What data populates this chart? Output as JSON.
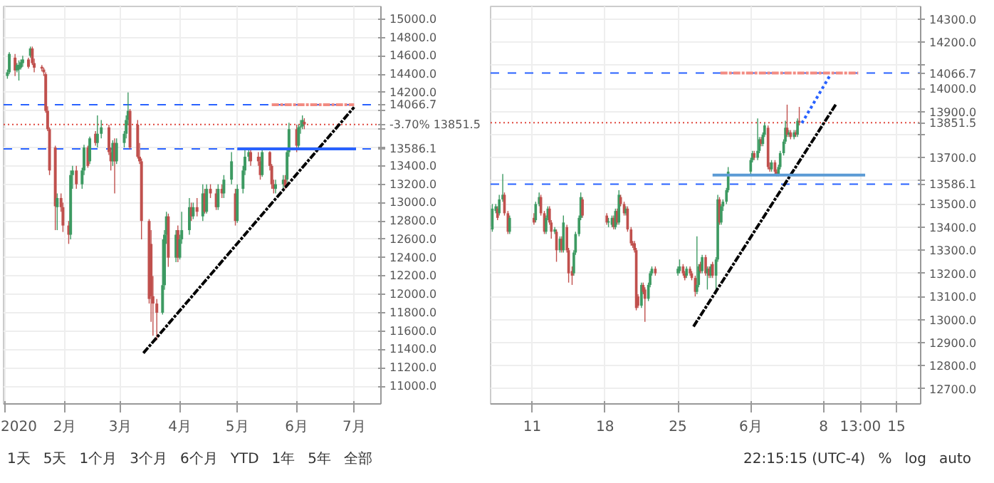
{
  "chart_data": [
    {
      "type": "candlestick",
      "x": [
        "2020-01-02",
        "2020-01-03",
        "2020-01-06",
        "2020-01-07",
        "2020-01-08",
        "2020-01-09",
        "2020-01-10",
        "2020-01-13",
        "2020-01-14",
        "2020-01-15",
        "2020-01-16",
        "2020-01-20",
        "2020-01-21",
        "2020-01-22",
        "2020-01-23",
        "2020-01-24",
        "2020-01-27",
        "2020-01-28",
        "2020-01-30",
        "2020-01-31",
        "2020-02-03",
        "2020-02-04",
        "2020-02-05",
        "2020-02-07",
        "2020-02-10",
        "2020-02-11",
        "2020-02-13",
        "2020-02-14",
        "2020-02-17",
        "2020-02-18",
        "2020-02-20",
        "2020-02-24",
        "2020-02-25",
        "2020-02-26",
        "2020-02-27",
        "2020-02-28",
        "2020-03-03",
        "2020-03-04",
        "2020-03-05",
        "2020-03-06",
        "2020-03-10",
        "2020-03-11",
        "2020-03-12",
        "2020-03-16",
        "2020-03-17",
        "2020-03-18",
        "2020-03-20",
        "2020-03-23",
        "2020-03-24",
        "2020-03-25",
        "2020-03-26",
        "2020-03-30",
        "2020-03-31",
        "2020-04-01",
        "2020-04-02",
        "2020-04-06",
        "2020-04-07",
        "2020-04-08",
        "2020-04-10",
        "2020-04-13",
        "2020-04-14",
        "2020-04-15",
        "2020-04-17",
        "2020-04-20",
        "2020-04-21",
        "2020-04-23",
        "2020-04-24",
        "2020-04-28",
        "2020-04-30",
        "2020-05-01",
        "2020-05-04",
        "2020-05-05",
        "2020-05-07",
        "2020-05-08",
        "2020-05-12",
        "2020-05-13",
        "2020-05-14",
        "2020-05-18",
        "2020-05-19",
        "2020-05-20",
        "2020-05-21",
        "2020-05-25",
        "2020-05-26",
        "2020-05-27",
        "2020-05-28",
        "2020-06-01",
        "2020-06-02",
        "2020-06-03",
        "2020-06-04",
        "2020-06-05"
      ],
      "ohlc": [
        [
          14380,
          14450,
          14350,
          14420
        ],
        [
          14420,
          14640,
          14400,
          14620
        ],
        [
          14580,
          14620,
          14380,
          14440
        ],
        [
          14440,
          14520,
          14420,
          14500
        ],
        [
          14450,
          14550,
          14330,
          14500
        ],
        [
          14470,
          14560,
          14450,
          14530
        ],
        [
          14520,
          14600,
          14480,
          14560
        ],
        [
          14560,
          14580,
          14460,
          14480
        ],
        [
          14600,
          14700,
          14580,
          14680
        ],
        [
          14680,
          14700,
          14500,
          14520
        ],
        [
          14520,
          14570,
          14420,
          14470
        ],
        [
          14480,
          14500,
          14430,
          14460
        ],
        [
          14450,
          14470,
          14380,
          14420
        ],
        [
          14400,
          14420,
          13980,
          14000
        ],
        [
          14000,
          14050,
          13780,
          13800
        ],
        [
          13800,
          13820,
          13300,
          13350
        ],
        [
          13600,
          13620,
          12700,
          12960
        ],
        [
          12950,
          13100,
          12700,
          13050
        ],
        [
          13050,
          13100,
          12900,
          12950
        ],
        [
          12950,
          13000,
          12680,
          12750
        ],
        [
          12750,
          12800,
          12550,
          12650
        ],
        [
          12650,
          13350,
          12600,
          13300
        ],
        [
          13300,
          13400,
          13150,
          13350
        ],
        [
          13350,
          13400,
          13150,
          13200
        ],
        [
          13200,
          13380,
          13150,
          13350
        ],
        [
          13350,
          13630,
          13300,
          13600
        ],
        [
          13600,
          13620,
          13380,
          13400
        ],
        [
          13450,
          13720,
          13420,
          13700
        ],
        [
          13750,
          13780,
          13620,
          13650
        ],
        [
          13650,
          13950,
          13600,
          13750
        ],
        [
          13750,
          13900,
          13700,
          13820
        ],
        [
          13820,
          13850,
          13520,
          13550
        ],
        [
          13550,
          13600,
          13350,
          13450
        ],
        [
          13450,
          13680,
          13400,
          13650
        ],
        [
          13650,
          13700,
          13100,
          13450
        ],
        [
          13450,
          13700,
          13420,
          13650
        ],
        [
          13650,
          13780,
          13600,
          13750
        ],
        [
          13750,
          13950,
          13700,
          13900
        ],
        [
          13900,
          14200,
          13850,
          14000
        ],
        [
          14000,
          14020,
          13580,
          13600
        ],
        [
          13850,
          13900,
          13480,
          13500
        ],
        [
          13500,
          13650,
          13420,
          13450
        ],
        [
          13450,
          13480,
          12600,
          12800
        ],
        [
          12800,
          12820,
          11900,
          11950
        ],
        [
          12550,
          12700,
          11700,
          11980
        ],
        [
          11980,
          12200,
          11550,
          11900
        ],
        [
          11900,
          11950,
          11500,
          11800
        ],
        [
          11800,
          12600,
          11780,
          12100
        ],
        [
          12100,
          12700,
          12050,
          12650
        ],
        [
          12650,
          12900,
          12550,
          12850
        ],
        [
          12850,
          12880,
          12300,
          12400
        ],
        [
          12400,
          12700,
          12350,
          12650
        ],
        [
          12700,
          12750,
          12350,
          12400
        ],
        [
          12400,
          12650,
          12380,
          12600
        ],
        [
          12600,
          12900,
          12550,
          12700
        ],
        [
          12700,
          13050,
          12650,
          12950
        ],
        [
          12950,
          13000,
          12800,
          12850
        ],
        [
          12850,
          13000,
          12820,
          12950
        ],
        [
          12950,
          13050,
          12850,
          12900
        ],
        [
          12850,
          13200,
          12800,
          13100
        ],
        [
          13100,
          13150,
          12880,
          12900
        ],
        [
          12900,
          13200,
          12880,
          13150
        ],
        [
          13150,
          13200,
          13050,
          13100
        ],
        [
          13100,
          13150,
          12920,
          12950
        ],
        [
          12950,
          13200,
          12920,
          13150
        ],
        [
          13150,
          13200,
          13050,
          13100
        ],
        [
          13100,
          13300,
          13050,
          13250
        ],
        [
          13250,
          13550,
          13200,
          13450
        ],
        [
          13100,
          13150,
          12750,
          12800
        ],
        [
          12800,
          13200,
          12780,
          13150
        ],
        [
          13150,
          13400,
          13100,
          13350
        ],
        [
          13350,
          13600,
          13300,
          13500
        ],
        [
          13500,
          13600,
          13450,
          13550
        ],
        [
          13550,
          13580,
          13400,
          13450
        ],
        [
          13500,
          13550,
          13400,
          13450
        ],
        [
          13450,
          13500,
          13250,
          13300
        ],
        [
          13300,
          13580,
          13280,
          13550
        ],
        [
          13550,
          13560,
          13350,
          13400
        ],
        [
          13400,
          13420,
          13150,
          13200
        ],
        [
          13200,
          13250,
          13100,
          13150
        ],
        [
          13150,
          13250,
          13100,
          13200
        ],
        [
          13200,
          13300,
          13150,
          13250
        ],
        [
          13250,
          13300,
          13150,
          13180
        ],
        [
          13250,
          13600,
          13200,
          13550
        ],
        [
          13550,
          13870,
          13500,
          13800
        ],
        [
          13800,
          13850,
          13550,
          13620
        ],
        [
          13620,
          13850,
          13600,
          13820
        ],
        [
          13820,
          13900,
          13750,
          13830
        ],
        [
          13830,
          13950,
          13800,
          13900
        ],
        [
          13880,
          13920,
          13800,
          13851.5
        ]
      ],
      "series": [
        {
          "type": "line",
          "x": [
            "2020-03-13",
            "2020-07-01"
          ],
          "values": [
            11360,
            14040
          ],
          "color": "#000000",
          "line_style": "dashed"
        },
        {
          "type": "line",
          "x": [
            "2020-05-01",
            "2020-07-02"
          ],
          "values": [
            13586.1,
            13586.1
          ],
          "color": "#2962ff",
          "line_style": "solid"
        },
        {
          "type": "line",
          "x": [
            "2020-05-19",
            "2020-07-01"
          ],
          "values": [
            14066.7,
            14066.7
          ],
          "color": "#f28b82",
          "line_style": "dashed"
        }
      ],
      "ref_lines": [
        {
          "axis": "y",
          "value": 14066.7,
          "label": "14066.7",
          "color": "#2962ff",
          "line_style": "dashed"
        },
        {
          "axis": "y",
          "value": 13586.1,
          "label": "13586.1",
          "color": "#2962ff",
          "line_style": "dashed"
        },
        {
          "axis": "y",
          "value": 13851.5,
          "label": "-3.70%  13851.5",
          "color": "#e0483e",
          "line_style": "dotted"
        }
      ],
      "xlim": [
        "2019-12-31",
        "2020-07-15"
      ],
      "ylim": [
        10806,
        15138
      ],
      "xticks": [
        {
          "value": "2020-01-01",
          "label": "2020"
        },
        {
          "value": "2020-02-01",
          "label": "2月"
        },
        {
          "value": "2020-03-01",
          "label": "3月"
        },
        {
          "value": "2020-04-01",
          "label": "4月"
        },
        {
          "value": "2020-05-01",
          "label": "5月"
        },
        {
          "value": "2020-06-01",
          "label": "6月"
        },
        {
          "value": "2020-07-01",
          "label": "7月"
        }
      ],
      "yticks": [
        {
          "value": 11000,
          "label": "11000.0"
        },
        {
          "value": 11200,
          "label": "11200.0"
        },
        {
          "value": 11400,
          "label": "11400.0"
        },
        {
          "value": 11600,
          "label": "11600.0"
        },
        {
          "value": 11800,
          "label": "11800.0"
        },
        {
          "value": 12000,
          "label": "12000.0"
        },
        {
          "value": 12200,
          "label": "12200.0"
        },
        {
          "value": 12400,
          "label": "12400.0"
        },
        {
          "value": 12600,
          "label": "12600.0"
        },
        {
          "value": 12800,
          "label": "12800.0"
        },
        {
          "value": 13000,
          "label": "13000.0"
        },
        {
          "value": 13200,
          "label": "13200.0"
        },
        {
          "value": 13400,
          "label": "13400.0"
        },
        {
          "value": 13600,
          "label": null
        },
        {
          "value": 13800,
          "label": null
        },
        {
          "value": 14000,
          "label": null
        },
        {
          "value": 14200,
          "label": "14200.0"
        },
        {
          "value": 14400,
          "label": "14400.0"
        },
        {
          "value": 14600,
          "label": "14600.0"
        },
        {
          "value": 14800,
          "label": "14800.0"
        },
        {
          "value": 15000,
          "label": "15000.0"
        }
      ],
      "grid": true,
      "annotations": [
        "1天",
        "5天",
        "1个月",
        "3个月",
        "6个月",
        "YTD",
        "1年",
        "5年",
        "全部"
      ]
    },
    {
      "type": "candlestick",
      "x": [
        "2020-05-07T04:00",
        "2020-05-07T12:00",
        "2020-05-07T16:00",
        "2020-05-07T20:00",
        "2020-05-08T04:00",
        "2020-05-08T08:00",
        "2020-05-08T16:00",
        "2020-05-08T20:00",
        "2020-05-11T04:00",
        "2020-05-11T08:00",
        "2020-05-11T16:00",
        "2020-05-11T20:00",
        "2020-05-12T04:00",
        "2020-05-12T08:00",
        "2020-05-12T12:00",
        "2020-05-12T16:00",
        "2020-05-12T20:00",
        "2020-05-13T04:00",
        "2020-05-13T08:00",
        "2020-05-13T16:00",
        "2020-05-13T20:00",
        "2020-05-14T00:00",
        "2020-05-14T08:00",
        "2020-05-14T12:00",
        "2020-05-14T20:00",
        "2020-05-15T00:00",
        "2020-05-15T04:00",
        "2020-05-15T12:00",
        "2020-05-15T16:00",
        "2020-05-15T20:00",
        "2020-05-18T04:00",
        "2020-05-18T08:00",
        "2020-05-18T16:00",
        "2020-05-18T20:00",
        "2020-05-19T00:00",
        "2020-05-19T04:00",
        "2020-05-19T08:00",
        "2020-05-19T12:00",
        "2020-05-19T20:00",
        "2020-05-20T00:00",
        "2020-05-20T04:00",
        "2020-05-20T12:00",
        "2020-05-20T16:00",
        "2020-05-20T20:00",
        "2020-05-21T00:00",
        "2020-05-21T04:00",
        "2020-05-21T12:00",
        "2020-05-21T16:00",
        "2020-05-21T20:00",
        "2020-05-22T04:00",
        "2020-05-22T08:00",
        "2020-05-22T12:00",
        "2020-05-22T20:00",
        "2020-05-25T00:00",
        "2020-05-25T04:00",
        "2020-05-25T12:00",
        "2020-05-25T16:00",
        "2020-05-25T20:00",
        "2020-05-26T04:00",
        "2020-05-26T08:00",
        "2020-05-26T16:00",
        "2020-05-26T20:00",
        "2020-05-27T00:00",
        "2020-05-27T04:00",
        "2020-05-27T08:00",
        "2020-05-27T16:00",
        "2020-05-27T20:00",
        "2020-05-28T00:00",
        "2020-05-28T04:00",
        "2020-05-28T08:00",
        "2020-05-28T16:00",
        "2020-05-28T20:00",
        "2020-05-29T00:00",
        "2020-05-29T04:00",
        "2020-05-29T08:00",
        "2020-05-29T16:00",
        "2020-05-29T20:00",
        "2020-06-01T00:00",
        "2020-06-01T04:00",
        "2020-06-01T08:00",
        "2020-06-01T16:00",
        "2020-06-01T20:00",
        "2020-06-02T00:00",
        "2020-06-02T04:00",
        "2020-06-02T08:00",
        "2020-06-02T16:00",
        "2020-06-02T20:00",
        "2020-06-03T00:00",
        "2020-06-03T08:00",
        "2020-06-03T12:00",
        "2020-06-03T16:00",
        "2020-06-03T20:00",
        "2020-06-04T04:00",
        "2020-06-04T08:00",
        "2020-06-04T12:00",
        "2020-06-04T16:00",
        "2020-06-04T20:00",
        "2020-06-05T04:00",
        "2020-06-05T08:00",
        "2020-06-05T12:00",
        "2020-06-05T16:00"
      ],
      "ohlc": [
        [
          13390,
          13500,
          13380,
          13480
        ],
        [
          13470,
          13500,
          13460,
          13490
        ],
        [
          13480,
          13490,
          13430,
          13440
        ],
        [
          13460,
          13540,
          13450,
          13520
        ],
        [
          13520,
          13630,
          13510,
          13540
        ],
        [
          13540,
          13550,
          13450,
          13460
        ],
        [
          13460,
          13470,
          13370,
          13380
        ],
        [
          13380,
          13450,
          13370,
          13440
        ],
        [
          13440,
          13460,
          13410,
          13420
        ],
        [
          13430,
          13510,
          13420,
          13500
        ],
        [
          13500,
          13550,
          13490,
          13530
        ],
        [
          13530,
          13540,
          13450,
          13460
        ],
        [
          13460,
          13470,
          13370,
          13380
        ],
        [
          13380,
          13450,
          13370,
          13440
        ],
        [
          13440,
          13490,
          13430,
          13480
        ],
        [
          13480,
          13490,
          13410,
          13420
        ],
        [
          13420,
          13430,
          13350,
          13380
        ],
        [
          13380,
          13400,
          13370,
          13390
        ],
        [
          13380,
          13390,
          13250,
          13300
        ],
        [
          13300,
          13360,
          13290,
          13350
        ],
        [
          13350,
          13360,
          13290,
          13300
        ],
        [
          13300,
          13450,
          13290,
          13420
        ],
        [
          13400,
          13410,
          13290,
          13300
        ],
        [
          13300,
          13310,
          13160,
          13200
        ],
        [
          13210,
          13230,
          13150,
          13190
        ],
        [
          13200,
          13300,
          13190,
          13290
        ],
        [
          13290,
          13380,
          13280,
          13370
        ],
        [
          13370,
          13450,
          13360,
          13440
        ],
        [
          13440,
          13550,
          13430,
          13530
        ],
        [
          13520,
          13530,
          13440,
          13450
        ],
        [
          13450,
          13460,
          13410,
          13420
        ],
        [
          13420,
          13440,
          13400,
          13425
        ],
        [
          13410,
          13450,
          13400,
          13440
        ],
        [
          13440,
          13450,
          13390,
          13400
        ],
        [
          13400,
          13480,
          13390,
          13470
        ],
        [
          13470,
          13480,
          13410,
          13420
        ],
        [
          13420,
          13560,
          13410,
          13540
        ],
        [
          13530,
          13540,
          13490,
          13500
        ],
        [
          13500,
          13510,
          13450,
          13460
        ],
        [
          13460,
          13490,
          13450,
          13480
        ],
        [
          13480,
          13490,
          13380,
          13390
        ],
        [
          13390,
          13400,
          13320,
          13330
        ],
        [
          13330,
          13340,
          13310,
          13320
        ],
        [
          13330,
          13340,
          13290,
          13300
        ],
        [
          13300,
          13310,
          13040,
          13050
        ],
        [
          13100,
          13110,
          13050,
          13060
        ],
        [
          13060,
          13160,
          13050,
          13150
        ],
        [
          13150,
          13160,
          13110,
          13120
        ],
        [
          13130,
          13140,
          12990,
          13090
        ],
        [
          13090,
          13160,
          13080,
          13150
        ],
        [
          13150,
          13210,
          13140,
          13200
        ],
        [
          13200,
          13230,
          13190,
          13220
        ],
        [
          13220,
          13230,
          13190,
          13200
        ],
        [
          13200,
          13230,
          13190,
          13220
        ],
        [
          13210,
          13260,
          13200,
          13230
        ],
        [
          13230,
          13240,
          13190,
          13200
        ],
        [
          13200,
          13210,
          13170,
          13180
        ],
        [
          13190,
          13230,
          13180,
          13220
        ],
        [
          13220,
          13230,
          13190,
          13200
        ],
        [
          13200,
          13210,
          13170,
          13180
        ],
        [
          13180,
          13190,
          13100,
          13120
        ],
        [
          13120,
          13360,
          13110,
          13150
        ],
        [
          13150,
          13240,
          13140,
          13230
        ],
        [
          13240,
          13250,
          13200,
          13210
        ],
        [
          13210,
          13280,
          13200,
          13270
        ],
        [
          13270,
          13280,
          13190,
          13200
        ],
        [
          13200,
          13230,
          13130,
          13220
        ],
        [
          13220,
          13230,
          13180,
          13190
        ],
        [
          13190,
          13240,
          13180,
          13230
        ],
        [
          13240,
          13250,
          13180,
          13190
        ],
        [
          13190,
          13270,
          13110,
          13260
        ],
        [
          13260,
          13540,
          13250,
          13520
        ],
        [
          13520,
          13530,
          13410,
          13420
        ],
        [
          13420,
          13500,
          13410,
          13490
        ],
        [
          13490,
          13520,
          13470,
          13510
        ],
        [
          13510,
          13570,
          13500,
          13560
        ],
        [
          13560,
          13660,
          13550,
          13640
        ],
        [
          13640,
          13700,
          13630,
          13690
        ],
        [
          13690,
          13730,
          13680,
          13720
        ],
        [
          13720,
          13730,
          13690,
          13700
        ],
        [
          13700,
          13870,
          13690,
          13730
        ],
        [
          13730,
          13790,
          13720,
          13780
        ],
        [
          13780,
          13790,
          13750,
          13760
        ],
        [
          13760,
          13810,
          13750,
          13800
        ],
        [
          13800,
          13850,
          13790,
          13840
        ],
        [
          13830,
          13840,
          13650,
          13660
        ],
        [
          13660,
          13680,
          13640,
          13650
        ],
        [
          13650,
          13690,
          13640,
          13680
        ],
        [
          13680,
          13690,
          13630,
          13640
        ],
        [
          13640,
          13650,
          13620,
          13630
        ],
        [
          13630,
          13670,
          13620,
          13660
        ],
        [
          13660,
          13730,
          13650,
          13720
        ],
        [
          13720,
          13780,
          13710,
          13770
        ],
        [
          13770,
          13860,
          13760,
          13830
        ],
        [
          13830,
          13930,
          13790,
          13800
        ],
        [
          13800,
          13820,
          13790,
          13810
        ],
        [
          13810,
          13820,
          13780,
          13790
        ],
        [
          13790,
          13820,
          13780,
          13810
        ],
        [
          13810,
          13820,
          13790,
          13800
        ],
        [
          13800,
          13870,
          13790,
          13860
        ],
        [
          13860,
          13920,
          13840,
          13851.5
        ]
      ],
      "series": [
        {
          "type": "line",
          "x": [
            "2020-05-26T12:00",
            "2020-06-09T04:00"
          ],
          "values": [
            12970,
            13930
          ],
          "color": "#000000",
          "line_style": "dashed"
        },
        {
          "type": "line",
          "x": [
            "2020-05-28T08:00",
            "2020-06-12T00:00"
          ],
          "values": [
            13625,
            13625
          ],
          "color": "#5b9bd5",
          "line_style": "solid"
        },
        {
          "type": "line",
          "x": [
            "2020-05-29T02:00",
            "2020-06-11T08:00"
          ],
          "values": [
            14066.7,
            14066.7
          ],
          "color": "#f28b82",
          "line_style": "dashed"
        },
        {
          "type": "line",
          "x": [
            "2020-06-05T22:00",
            "2020-06-08T16:00"
          ],
          "values": [
            13850,
            14060
          ],
          "color": "#2962ff",
          "line_style": "dotted"
        }
      ],
      "ref_lines": [
        {
          "axis": "y",
          "value": 14066.7,
          "label": "14066.7",
          "color": "#2962ff",
          "line_style": "dashed"
        },
        {
          "axis": "y",
          "value": 13586.1,
          "label": "13586.1",
          "color": "#2962ff",
          "line_style": "dashed"
        },
        {
          "axis": "y",
          "value": 13851.5,
          "label": "13851.5",
          "color": "#e0483e",
          "line_style": "dotted"
        }
      ],
      "xlim": [
        "2020-05-07T00:00",
        "2020-06-17T08:00"
      ],
      "ylim": [
        12635,
        14355
      ],
      "xticks": [
        {
          "value": "2020-05-11",
          "label": "11"
        },
        {
          "value": "2020-05-18",
          "label": "18"
        },
        {
          "value": "2020-05-25",
          "label": "25"
        },
        {
          "value": "2020-06-01",
          "label": "6月"
        },
        {
          "value": "2020-06-08",
          "label": "8"
        },
        {
          "value": "2020-06-11T13:00",
          "label": "13:00"
        },
        {
          "value": "2020-06-15",
          "label": "15"
        }
      ],
      "yticks": [
        {
          "value": 12700,
          "label": "12700.0"
        },
        {
          "value": 12800,
          "label": "12800.0"
        },
        {
          "value": 12900,
          "label": "12900.0"
        },
        {
          "value": 13000,
          "label": "13000.0"
        },
        {
          "value": 13100,
          "label": "13100.0"
        },
        {
          "value": 13200,
          "label": "13200.0"
        },
        {
          "value": 13300,
          "label": "13300.0"
        },
        {
          "value": 13400,
          "label": "13400.0"
        },
        {
          "value": 13500,
          "label": "13500.0"
        },
        {
          "value": 13600,
          "label": null
        },
        {
          "value": 13700,
          "label": "13700.0"
        },
        {
          "value": 13800,
          "label": null
        },
        {
          "value": 13900,
          "label": "13900.0"
        },
        {
          "value": 14000,
          "label": "14000.0"
        },
        {
          "value": 14100,
          "label": null
        },
        {
          "value": 14200,
          "label": "14200.0"
        },
        {
          "value": 14300,
          "label": "14300.0"
        }
      ],
      "grid": true,
      "annotations": [
        "22:15:15 (UTC-4)",
        "%",
        "log",
        "auto"
      ]
    }
  ]
}
